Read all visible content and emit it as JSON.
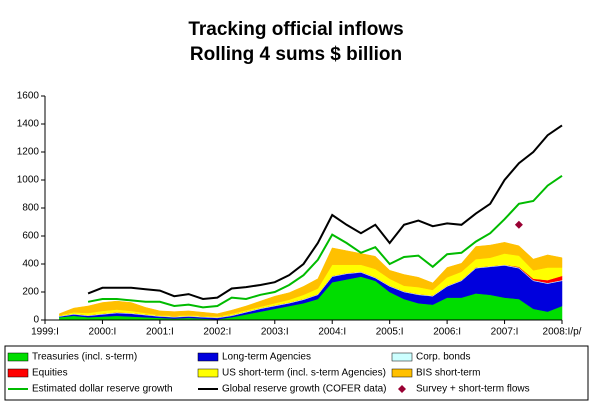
{
  "chart_data": {
    "type": "area",
    "title": "Tracking official inflows",
    "subtitle": "Rolling 4 sums $ billion",
    "categories": [
      "1999:I",
      null,
      null,
      null,
      "2000:I",
      null,
      null,
      null,
      "2001:I",
      null,
      null,
      null,
      "2002:I",
      null,
      null,
      null,
      "2003:I",
      null,
      null,
      null,
      "2004:I",
      null,
      null,
      null,
      "2005:I",
      null,
      null,
      null,
      "2006:I",
      null,
      null,
      null,
      "2007:I",
      null,
      null,
      null,
      "2008:I/p/"
    ],
    "ylim": [
      0,
      1600
    ],
    "yticks": [
      0,
      200,
      400,
      600,
      800,
      1000,
      1200,
      1400,
      1600
    ],
    "stacked": true,
    "series": [
      {
        "name": "Treasuries (incl. s-term)",
        "type": "area",
        "color": "#00dd00",
        "values": [
          null,
          20,
          30,
          20,
          25,
          30,
          25,
          20,
          15,
          10,
          15,
          10,
          5,
          20,
          40,
          60,
          80,
          100,
          120,
          150,
          270,
          290,
          310,
          280,
          200,
          150,
          120,
          110,
          160,
          160,
          190,
          180,
          160,
          150,
          80,
          60,
          100
        ]
      },
      {
        "name": "Long-term Agencies",
        "type": "area",
        "color": "#0000dd",
        "values": [
          null,
          5,
          10,
          10,
          15,
          20,
          20,
          15,
          10,
          10,
          10,
          10,
          10,
          10,
          15,
          20,
          20,
          20,
          25,
          30,
          40,
          40,
          30,
          20,
          40,
          50,
          60,
          60,
          80,
          120,
          180,
          200,
          230,
          220,
          200,
          200,
          180
        ]
      },
      {
        "name": "Corp. bonds",
        "type": "area",
        "color": "#ccffff",
        "values": [
          null,
          5,
          5,
          5,
          5,
          5,
          5,
          5,
          5,
          5,
          5,
          5,
          5,
          5,
          5,
          5,
          5,
          5,
          5,
          5,
          5,
          5,
          5,
          5,
          5,
          5,
          5,
          5,
          5,
          5,
          5,
          5,
          5,
          5,
          5,
          5,
          5
        ]
      },
      {
        "name": "Equities",
        "type": "area",
        "color": "#ff0000",
        "values": [
          null,
          0,
          0,
          0,
          0,
          0,
          0,
          0,
          0,
          0,
          0,
          0,
          0,
          0,
          0,
          0,
          0,
          0,
          0,
          0,
          0,
          0,
          0,
          0,
          0,
          0,
          0,
          0,
          0,
          0,
          0,
          0,
          0,
          5,
          10,
          20,
          30
        ]
      },
      {
        "name": "US short-term (incl. s-term Agencies)",
        "type": "area",
        "color": "#ffff00",
        "values": [
          null,
          5,
          10,
          15,
          20,
          20,
          15,
          10,
          5,
          5,
          5,
          5,
          5,
          10,
          10,
          10,
          15,
          20,
          30,
          40,
          80,
          60,
          50,
          60,
          50,
          40,
          50,
          40,
          60,
          60,
          60,
          60,
          80,
          80,
          60,
          90,
          60
        ]
      },
      {
        "name": "BIS short-term",
        "type": "area",
        "color": "#ffc000",
        "values": [
          null,
          10,
          30,
          50,
          60,
          60,
          60,
          40,
          30,
          30,
          30,
          25,
          20,
          25,
          30,
          40,
          50,
          50,
          60,
          70,
          120,
          100,
          80,
          90,
          60,
          80,
          70,
          50,
          70,
          60,
          90,
          90,
          80,
          70,
          80,
          90,
          70
        ]
      },
      {
        "name": "Estimated dollar reserve growth",
        "type": "line",
        "color": "#00bb00",
        "values": [
          null,
          null,
          null,
          130,
          150,
          150,
          140,
          130,
          130,
          100,
          110,
          90,
          100,
          160,
          150,
          180,
          200,
          250,
          320,
          430,
          610,
          550,
          480,
          520,
          400,
          450,
          460,
          380,
          470,
          480,
          560,
          620,
          720,
          830,
          850,
          960,
          1030
        ]
      },
      {
        "name": "Global reserve growth (COFER data)",
        "type": "line",
        "color": "#000000",
        "values": [
          null,
          null,
          null,
          190,
          230,
          230,
          230,
          220,
          210,
          170,
          185,
          150,
          160,
          225,
          235,
          250,
          270,
          320,
          400,
          550,
          750,
          680,
          620,
          680,
          550,
          680,
          710,
          670,
          690,
          680,
          760,
          830,
          1000,
          1120,
          1200,
          1320,
          1390
        ]
      },
      {
        "name": "Survey + short-term flows",
        "type": "scatter",
        "color": "#990033",
        "values": [
          null,
          null,
          null,
          null,
          null,
          null,
          null,
          null,
          null,
          null,
          null,
          null,
          null,
          null,
          null,
          null,
          null,
          null,
          null,
          null,
          null,
          null,
          null,
          null,
          null,
          null,
          null,
          null,
          null,
          null,
          null,
          null,
          null,
          680,
          null,
          null,
          null
        ]
      }
    ]
  }
}
